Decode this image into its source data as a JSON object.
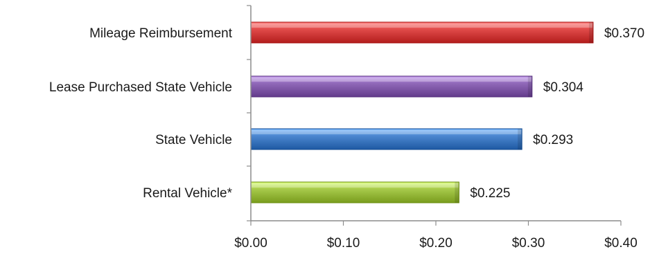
{
  "chart_data": {
    "type": "bar",
    "orientation": "horizontal",
    "categories": [
      "Mileage Reimbursement",
      "Lease Purchased State Vehicle",
      "State Vehicle",
      "Rental Vehicle*"
    ],
    "values": [
      0.37,
      0.304,
      0.293,
      0.225
    ],
    "value_labels": [
      "$0.370",
      "$0.304",
      "$0.293",
      "$0.225"
    ],
    "bar_colors": [
      "#e04a49",
      "#9068b8",
      "#4b86cf",
      "#a6c94a"
    ],
    "title": "",
    "xlabel": "",
    "ylabel": "",
    "xlim": [
      0,
      0.4
    ],
    "x_ticks": [
      0,
      0.1,
      0.2,
      0.3,
      0.4
    ],
    "x_tick_labels": [
      "$0.00",
      "$0.10",
      "$0.20",
      "$0.30",
      "$0.40"
    ],
    "grid": false,
    "legend": "none"
  }
}
